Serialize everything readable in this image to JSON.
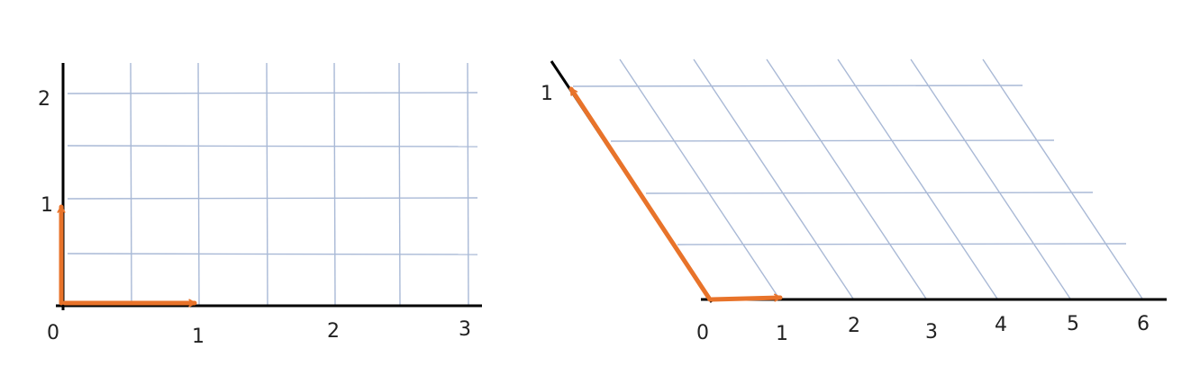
{
  "colors": {
    "grid": "#a9b9d6",
    "axis": "#000000",
    "vector": "#e8732a",
    "text": "#222222"
  },
  "left_diagram": {
    "x_ticks": [
      {
        "label": "0",
        "value": 0
      },
      {
        "label": "1",
        "value": 1
      },
      {
        "label": "2",
        "value": 2
      },
      {
        "label": "3",
        "value": 3
      }
    ],
    "y_ticks": [
      {
        "label": "1",
        "value": 1
      },
      {
        "label": "2",
        "value": 2
      }
    ],
    "grid_spacing": 0.5,
    "x_range": [
      0,
      3
    ],
    "y_range": [
      0,
      2.3
    ],
    "basis_vectors": [
      [
        1,
        0
      ],
      [
        0,
        1
      ]
    ]
  },
  "right_diagram": {
    "x_ticks": [
      {
        "label": "0",
        "value": 0
      },
      {
        "label": "1",
        "value": 1
      },
      {
        "label": "2",
        "value": 2
      },
      {
        "label": "3",
        "value": 3
      },
      {
        "label": "4",
        "value": 4
      },
      {
        "label": "5",
        "value": 5
      },
      {
        "label": "6",
        "value": 6
      }
    ],
    "skew_axis_ticks": [
      {
        "label": "1",
        "value": 1
      }
    ],
    "grid_spacing": 0.25,
    "basis_vectors": [
      [
        1,
        0
      ],
      [
        -1.8,
        1
      ]
    ]
  }
}
